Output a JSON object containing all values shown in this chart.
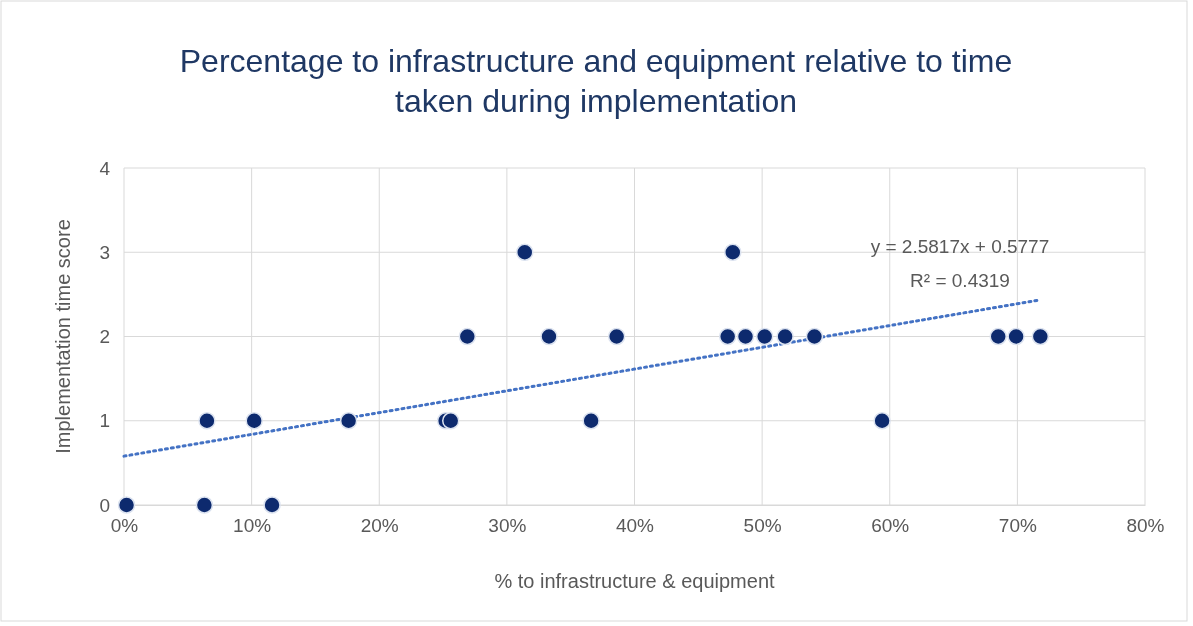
{
  "chart_data": {
    "type": "scatter",
    "title": "Percentage to infrastructure and equipment relative to time taken during implementation",
    "xlabel": "% to infrastructure & equipment",
    "ylabel": "Implementation time score",
    "xlim": [
      0,
      0.8
    ],
    "xticks": [
      {
        "value": 0,
        "label": "0%"
      },
      {
        "value": 0.1,
        "label": "10%"
      },
      {
        "value": 0.2,
        "label": "20%"
      },
      {
        "value": 0.3,
        "label": "30%"
      },
      {
        "value": 0.4,
        "label": "40%"
      },
      {
        "value": 0.5,
        "label": "50%"
      },
      {
        "value": 0.6,
        "label": "60%"
      },
      {
        "value": 0.7,
        "label": "70%"
      },
      {
        "value": 0.8,
        "label": "80%"
      }
    ],
    "ylim": [
      0,
      4
    ],
    "yticks": [
      0,
      1,
      2,
      3,
      4
    ],
    "grid": true,
    "series": [
      {
        "type": "scatter",
        "marker": "circle",
        "color": "#0d2a6e",
        "x": [
          0.002,
          0.063,
          0.065,
          0.102,
          0.116,
          0.176,
          0.252,
          0.256,
          0.269,
          0.314,
          0.333,
          0.366,
          0.386,
          0.473,
          0.477,
          0.487,
          0.502,
          0.518,
          0.541,
          0.594,
          0.685,
          0.699,
          0.718
        ],
        "values": [
          0,
          0,
          1,
          1,
          0,
          1,
          1,
          1,
          2,
          3,
          2,
          1,
          2,
          2,
          3,
          2,
          2,
          2,
          2,
          1,
          2,
          2,
          2
        ]
      },
      {
        "type": "line",
        "color": "#4472c4",
        "line_style": "dotted",
        "marker": "none",
        "x": [
          0,
          0.716
        ],
        "values": [
          0.58,
          2.43
        ]
      }
    ],
    "annotations": [
      "y = 2.5817x + 0.5777",
      "R² = 0.4319"
    ]
  }
}
